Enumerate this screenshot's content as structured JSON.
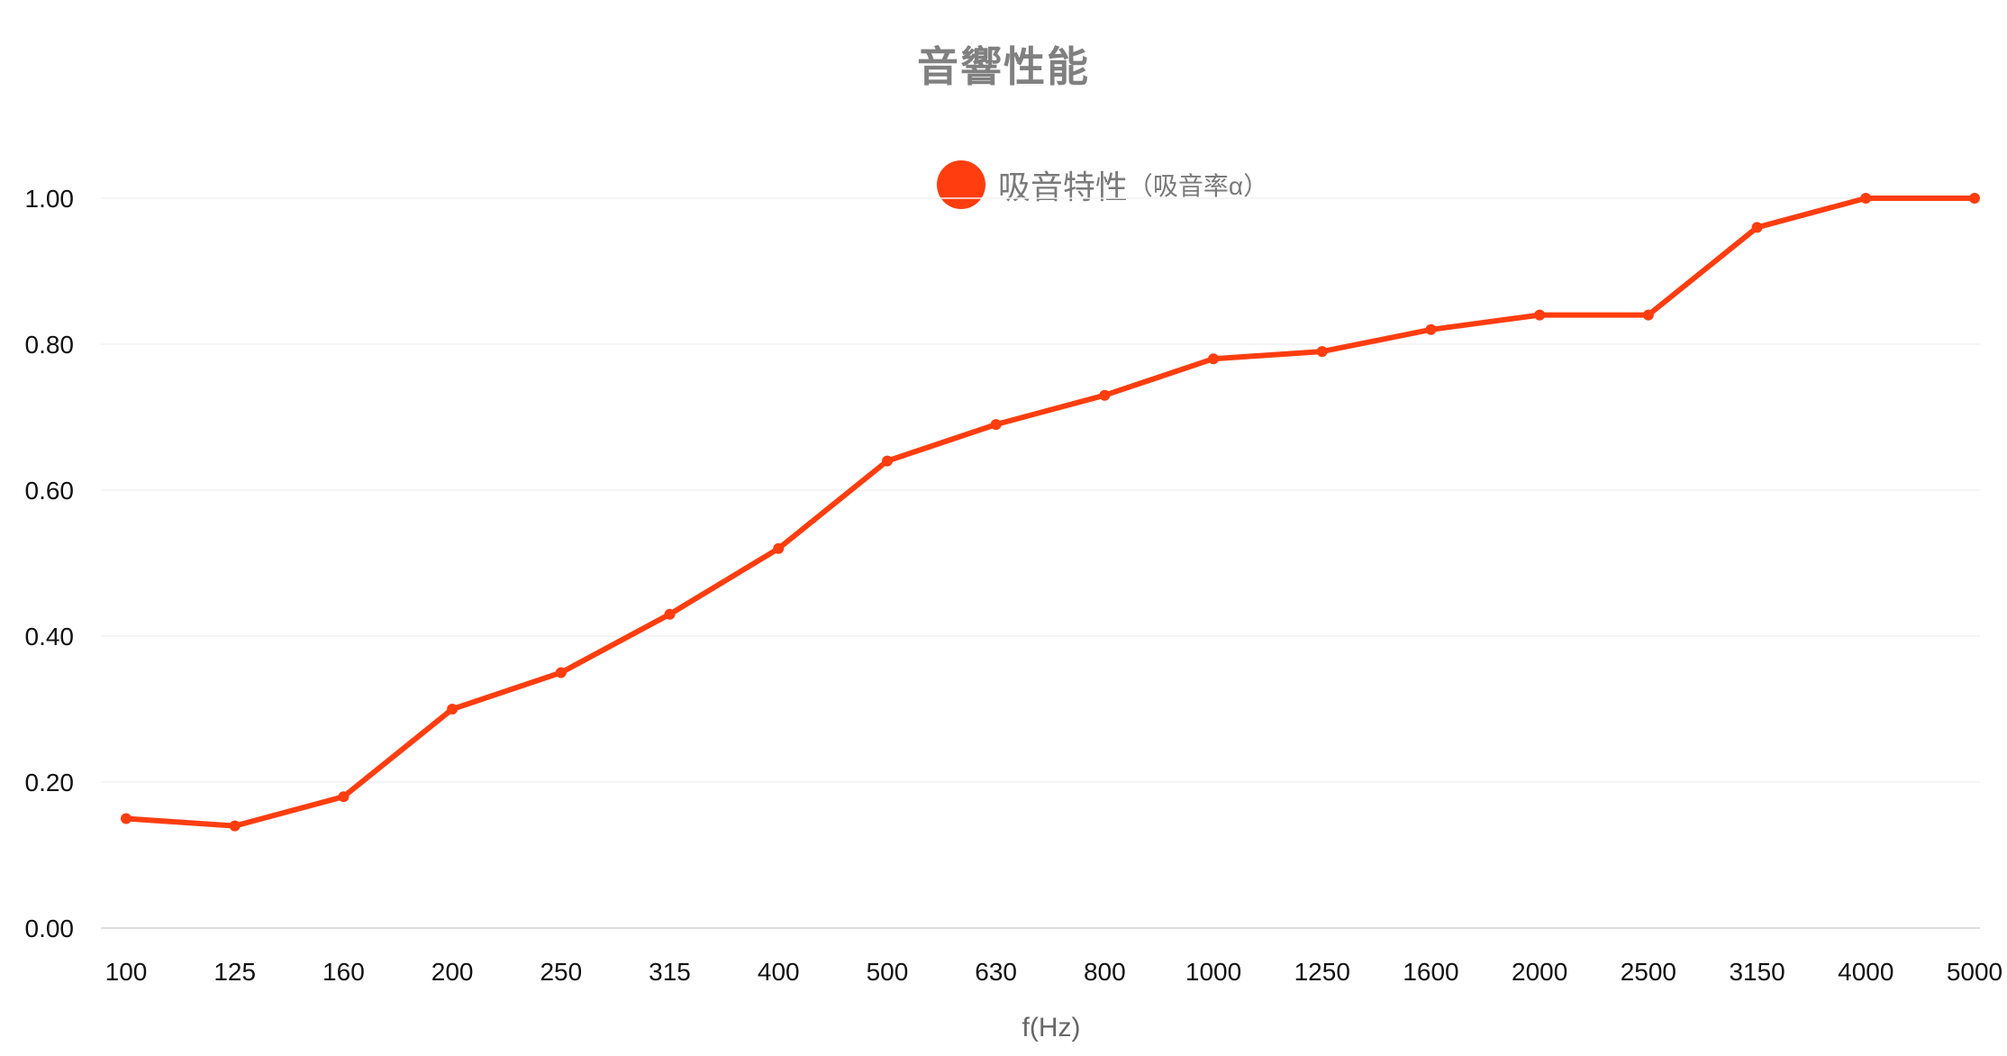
{
  "chart_data": {
    "type": "line",
    "title": "音響性能",
    "xlabel": "f(Hz)",
    "ylabel": "",
    "categories": [
      "100",
      "125",
      "160",
      "200",
      "250",
      "315",
      "400",
      "500",
      "630",
      "800",
      "1000",
      "1250",
      "1600",
      "2000",
      "2500",
      "3150",
      "4000",
      "5000"
    ],
    "y_ticks": [
      "0.00",
      "0.20",
      "0.40",
      "0.60",
      "0.80",
      "1.00"
    ],
    "ylim": [
      0,
      1.0
    ],
    "grid": true,
    "legend_position": "top-center",
    "series": [
      {
        "name": "吸音特性",
        "name_suffix": "（吸音率α）",
        "color": "#ff3d0f",
        "values": [
          0.15,
          0.14,
          0.18,
          0.3,
          0.35,
          0.43,
          0.52,
          0.64,
          0.69,
          0.73,
          0.78,
          0.79,
          0.82,
          0.84,
          0.84,
          0.96,
          1.0,
          1.0
        ]
      }
    ]
  }
}
